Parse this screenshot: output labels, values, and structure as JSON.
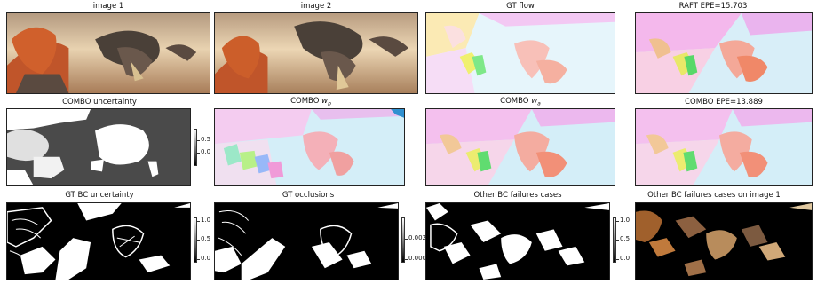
{
  "titles": {
    "r1c1": "image 1",
    "r1c2": "image 2",
    "r1c3": "GT flow",
    "r1c4": "RAFT EPE=15.703",
    "r2c1": "COMBO uncertainty",
    "r2c2_main": "COMBO ",
    "r2c2_sym": "w",
    "r2c2_sub": "p",
    "r2c3_main": "COMBO ",
    "r2c3_sym": "w",
    "r2c3_sub": "a",
    "r2c4": "COMBO EPE=13.889",
    "r3c1": "GT BC uncertainty",
    "r3c2": "GT occlusions",
    "r3c3": "Other BC failures cases",
    "r3c4": "Other BC failures cases on image 1"
  },
  "colorbars": {
    "combo_uncertainty": {
      "ticks": [
        "0.5",
        "0.0"
      ]
    },
    "gt_bc_uncertainty": {
      "ticks": [
        "1.0",
        "0.5",
        "0.0"
      ]
    },
    "gt_occlusions": {
      "ticks": [
        "0.002",
        "0.000"
      ]
    },
    "other_bc": {
      "ticks": [
        "1.0",
        "0.5",
        "0.0"
      ]
    }
  }
}
